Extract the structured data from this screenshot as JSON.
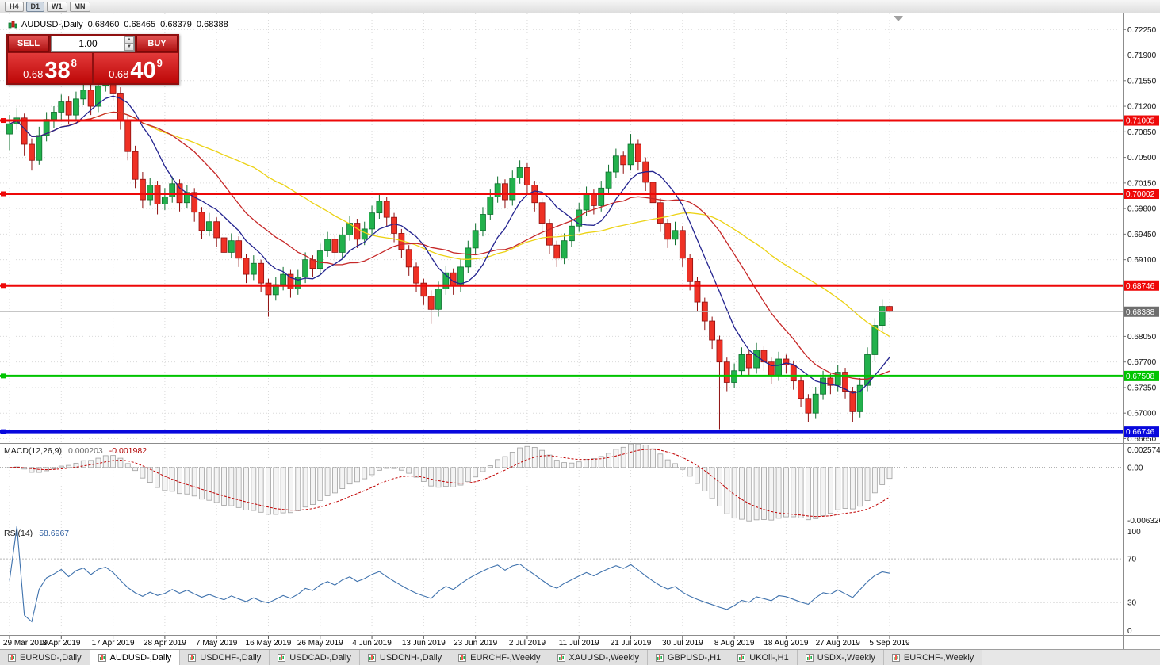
{
  "toolbar": {
    "periods": [
      {
        "label": "H4",
        "active": false
      },
      {
        "label": "D1",
        "active": true
      },
      {
        "label": "W1",
        "active": false
      },
      {
        "label": "MN",
        "active": false
      }
    ]
  },
  "chart_header": {
    "symbol_label": "AUDUSD-,Daily",
    "open": "0.68460",
    "high": "0.68465",
    "low": "0.68379",
    "close": "0.68388"
  },
  "trade_widget": {
    "sell_label": "SELL",
    "buy_label": "BUY",
    "volume": "1.00",
    "sell_price_prefix": "0.68",
    "sell_price_big": "38",
    "sell_price_sup": "8",
    "buy_price_prefix": "0.68",
    "buy_price_big": "40",
    "buy_price_sup": "9"
  },
  "icons": {
    "spin_up": "▲",
    "spin_down": "▼"
  },
  "colors": {
    "candle_up": "#22b14c",
    "candle_up_border": "#0e6f2e",
    "candle_down": "#ef3125",
    "candle_down_border": "#8e0f0f",
    "hline_red": "#ee0808",
    "hline_green": "#00c400",
    "hline_blue": "#0808dd",
    "current_price_box": "#6e6e6e",
    "macd_hist_fill": "#f4f4f4",
    "macd_hist_border": "#a0a0a0",
    "macd_signal": "#c00000",
    "rsi_line": "#3f72ad",
    "grid": "#dadada"
  },
  "chart_data": {
    "type": "candlestick",
    "symbol": "AUDUSD",
    "timeframe": "Daily",
    "label_every": 7,
    "x_labels": [
      "29 Mar 2019",
      "8 Apr 2019",
      "17 Apr 2019",
      "28 Apr 2019",
      "7 May 2019",
      "16 May 2019",
      "26 May 2019",
      "4 Jun 2019",
      "13 Jun 2019",
      "23 Jun 2019",
      "2 Jul 2019",
      "11 Jul 2019",
      "21 Jul 2019",
      "30 Jul 2019",
      "8 Aug 2019",
      "18 Aug 2019",
      "27 Aug 2019",
      "5 Sep 2019"
    ],
    "view_range": {
      "max": 0.7247,
      "min": 0.6659
    },
    "price_axis": {
      "ticks": [
        0.7225,
        0.719,
        0.7155,
        0.712,
        0.7085,
        0.705,
        0.7015,
        0.698,
        0.6945,
        0.691,
        0.6805,
        0.677,
        0.6735,
        0.67,
        0.6665
      ]
    },
    "candles": [
      [
        0.7082,
        0.7108,
        0.706,
        0.7096
      ],
      [
        0.7096,
        0.7118,
        0.7088,
        0.7104
      ],
      [
        0.7104,
        0.711,
        0.7052,
        0.7068
      ],
      [
        0.7068,
        0.7076,
        0.7032,
        0.7046
      ],
      [
        0.7046,
        0.7092,
        0.704,
        0.708
      ],
      [
        0.708,
        0.7112,
        0.7072,
        0.7102
      ],
      [
        0.7102,
        0.712,
        0.709,
        0.7112
      ],
      [
        0.7112,
        0.7136,
        0.71,
        0.7126
      ],
      [
        0.7126,
        0.7134,
        0.7096,
        0.7108
      ],
      [
        0.7108,
        0.714,
        0.71,
        0.713
      ],
      [
        0.713,
        0.7152,
        0.7122,
        0.7142
      ],
      [
        0.7142,
        0.715,
        0.7108,
        0.712
      ],
      [
        0.712,
        0.7156,
        0.7112,
        0.7148
      ],
      [
        0.7148,
        0.7172,
        0.714,
        0.716
      ],
      [
        0.716,
        0.7176,
        0.7128,
        0.7138
      ],
      [
        0.7138,
        0.7146,
        0.7088,
        0.71
      ],
      [
        0.71,
        0.7108,
        0.7046,
        0.7058
      ],
      [
        0.7058,
        0.7066,
        0.7008,
        0.702
      ],
      [
        0.702,
        0.703,
        0.698,
        0.6992
      ],
      [
        0.6992,
        0.7022,
        0.6984,
        0.7012
      ],
      [
        0.7012,
        0.7018,
        0.6972,
        0.6986
      ],
      [
        0.6986,
        0.7008,
        0.6978,
        0.6996
      ],
      [
        0.6996,
        0.7024,
        0.6988,
        0.7014
      ],
      [
        0.7014,
        0.702,
        0.6976,
        0.6988
      ],
      [
        0.6988,
        0.7012,
        0.698,
        0.7002
      ],
      [
        0.7002,
        0.7008,
        0.6962,
        0.6975
      ],
      [
        0.6975,
        0.6982,
        0.6938,
        0.695
      ],
      [
        0.695,
        0.6974,
        0.6942,
        0.6962
      ],
      [
        0.6962,
        0.6968,
        0.6928,
        0.694
      ],
      [
        0.694,
        0.6948,
        0.6908,
        0.692
      ],
      [
        0.692,
        0.6946,
        0.6912,
        0.6936
      ],
      [
        0.6936,
        0.6942,
        0.69,
        0.6912
      ],
      [
        0.6912,
        0.6918,
        0.6878,
        0.689
      ],
      [
        0.689,
        0.6916,
        0.6882,
        0.6905
      ],
      [
        0.6905,
        0.691,
        0.6866,
        0.6878
      ],
      [
        0.6878,
        0.6884,
        0.6832,
        0.6862
      ],
      [
        0.6862,
        0.6886,
        0.6854,
        0.6876
      ],
      [
        0.6876,
        0.69,
        0.6868,
        0.689
      ],
      [
        0.689,
        0.6896,
        0.6858,
        0.687
      ],
      [
        0.687,
        0.6896,
        0.6862,
        0.6886
      ],
      [
        0.6886,
        0.692,
        0.6878,
        0.691
      ],
      [
        0.691,
        0.6916,
        0.6886,
        0.6898
      ],
      [
        0.6898,
        0.6932,
        0.689,
        0.6922
      ],
      [
        0.6922,
        0.6948,
        0.6914,
        0.6938
      ],
      [
        0.6938,
        0.6944,
        0.6908,
        0.692
      ],
      [
        0.692,
        0.6954,
        0.6912,
        0.6944
      ],
      [
        0.6944,
        0.697,
        0.6936,
        0.696
      ],
      [
        0.696,
        0.6966,
        0.6926,
        0.6938
      ],
      [
        0.6938,
        0.6962,
        0.693,
        0.6952
      ],
      [
        0.6952,
        0.6984,
        0.6944,
        0.6974
      ],
      [
        0.6974,
        0.7,
        0.6966,
        0.699
      ],
      [
        0.699,
        0.6996,
        0.6956,
        0.6968
      ],
      [
        0.6968,
        0.6974,
        0.6934,
        0.6946
      ],
      [
        0.6946,
        0.6952,
        0.6912,
        0.6924
      ],
      [
        0.6924,
        0.693,
        0.6888,
        0.69
      ],
      [
        0.69,
        0.6906,
        0.6866,
        0.6878
      ],
      [
        0.6878,
        0.6884,
        0.6848,
        0.686
      ],
      [
        0.686,
        0.6868,
        0.6822,
        0.6842
      ],
      [
        0.6842,
        0.688,
        0.6832,
        0.687
      ],
      [
        0.687,
        0.6902,
        0.6862,
        0.6892
      ],
      [
        0.6892,
        0.6898,
        0.6862,
        0.6874
      ],
      [
        0.6874,
        0.691,
        0.6866,
        0.69
      ],
      [
        0.69,
        0.6936,
        0.6892,
        0.6926
      ],
      [
        0.6926,
        0.696,
        0.6918,
        0.695
      ],
      [
        0.695,
        0.6982,
        0.6942,
        0.6972
      ],
      [
        0.6972,
        0.7006,
        0.6964,
        0.6996
      ],
      [
        0.6996,
        0.7024,
        0.6988,
        0.7014
      ],
      [
        0.7014,
        0.702,
        0.698,
        0.6992
      ],
      [
        0.6992,
        0.7032,
        0.6984,
        0.7022
      ],
      [
        0.7022,
        0.7046,
        0.7014,
        0.7036
      ],
      [
        0.7036,
        0.7042,
        0.7,
        0.7012
      ],
      [
        0.7012,
        0.7018,
        0.6976,
        0.6988
      ],
      [
        0.6988,
        0.6994,
        0.6948,
        0.696
      ],
      [
        0.696,
        0.6966,
        0.6918,
        0.693
      ],
      [
        0.693,
        0.6936,
        0.69,
        0.6912
      ],
      [
        0.6912,
        0.6946,
        0.6904,
        0.6936
      ],
      [
        0.6936,
        0.6966,
        0.6928,
        0.6956
      ],
      [
        0.6956,
        0.6988,
        0.6948,
        0.6978
      ],
      [
        0.6978,
        0.701,
        0.697,
        0.7
      ],
      [
        0.7,
        0.7006,
        0.6972,
        0.6984
      ],
      [
        0.6984,
        0.7018,
        0.6976,
        0.7008
      ],
      [
        0.7008,
        0.704,
        0.7,
        0.703
      ],
      [
        0.703,
        0.7062,
        0.7022,
        0.7052
      ],
      [
        0.7052,
        0.7058,
        0.7028,
        0.704
      ],
      [
        0.704,
        0.7082,
        0.7032,
        0.7068
      ],
      [
        0.7068,
        0.7074,
        0.7032,
        0.7044
      ],
      [
        0.7044,
        0.705,
        0.7004,
        0.7016
      ],
      [
        0.7016,
        0.7022,
        0.6976,
        0.6988
      ],
      [
        0.6988,
        0.6994,
        0.6948,
        0.696
      ],
      [
        0.696,
        0.6966,
        0.6926,
        0.6938
      ],
      [
        0.6938,
        0.6962,
        0.693,
        0.695
      ],
      [
        0.695,
        0.6956,
        0.69,
        0.6912
      ],
      [
        0.6912,
        0.6918,
        0.6868,
        0.688
      ],
      [
        0.688,
        0.6886,
        0.684,
        0.6852
      ],
      [
        0.6852,
        0.6858,
        0.6814,
        0.6826
      ],
      [
        0.6826,
        0.6832,
        0.6788,
        0.68
      ],
      [
        0.68,
        0.6806,
        0.6678,
        0.677
      ],
      [
        0.677,
        0.6776,
        0.673,
        0.6742
      ],
      [
        0.6742,
        0.6768,
        0.6734,
        0.6758
      ],
      [
        0.6758,
        0.679,
        0.675,
        0.678
      ],
      [
        0.678,
        0.6786,
        0.6752,
        0.6762
      ],
      [
        0.6762,
        0.6796,
        0.6754,
        0.6786
      ],
      [
        0.6786,
        0.6792,
        0.6758,
        0.677
      ],
      [
        0.677,
        0.6776,
        0.674,
        0.6752
      ],
      [
        0.6752,
        0.6784,
        0.6744,
        0.6774
      ],
      [
        0.6774,
        0.678,
        0.6754,
        0.6766
      ],
      [
        0.6766,
        0.6772,
        0.6732,
        0.6744
      ],
      [
        0.6744,
        0.675,
        0.6708,
        0.672
      ],
      [
        0.672,
        0.6726,
        0.6688,
        0.67
      ],
      [
        0.67,
        0.6736,
        0.6692,
        0.6726
      ],
      [
        0.6726,
        0.6758,
        0.6718,
        0.6748
      ],
      [
        0.6748,
        0.6754,
        0.6726,
        0.6738
      ],
      [
        0.6738,
        0.6766,
        0.673,
        0.6756
      ],
      [
        0.6756,
        0.6762,
        0.672,
        0.673
      ],
      [
        0.673,
        0.6736,
        0.6688,
        0.6702
      ],
      [
        0.6702,
        0.6748,
        0.6694,
        0.6738
      ],
      [
        0.6738,
        0.679,
        0.673,
        0.678
      ],
      [
        0.678,
        0.683,
        0.6772,
        0.682
      ],
      [
        0.682,
        0.6856,
        0.6812,
        0.6846
      ],
      [
        0.6846,
        0.68465,
        0.68379,
        0.68388
      ]
    ],
    "moving_averages": [
      {
        "period": 34,
        "color": "#ecd213",
        "name": "ma-slow-yellow"
      },
      {
        "period": 17,
        "color": "#c62828",
        "name": "ma-mid-red"
      },
      {
        "period": 8,
        "color": "#23238f",
        "name": "ma-fast-blue"
      }
    ],
    "hlines": [
      {
        "price": 0.71005,
        "label": "0.71005",
        "color": "#ee0808",
        "width": 3
      },
      {
        "price": 0.70002,
        "label": "0.70002",
        "color": "#ee0808",
        "width": 3
      },
      {
        "price": 0.68746,
        "label": "0.68746",
        "color": "#ee0808",
        "width": 3
      },
      {
        "price": 0.67508,
        "label": "0.67508",
        "color": "#00c400",
        "width": 3
      },
      {
        "price": 0.66746,
        "label": "0.66746",
        "color": "#0808dd",
        "width": 4
      }
    ],
    "current_price": {
      "value": 0.68388,
      "label": "0.68388"
    },
    "indicators": {
      "macd": {
        "label": "MACD(12,26,9)",
        "value": "0.000203",
        "signal_value": "-0.001982",
        "fast": 12,
        "slow": 26,
        "signal": 9,
        "axis": {
          "max": 0.002574,
          "min": -0.006326,
          "ticks": [
            "0.002574",
            "0.00",
            "-0.006326"
          ]
        }
      },
      "rsi": {
        "label": "RSI(14)",
        "value": "58.6967",
        "period": 14,
        "levels": [
          70,
          30
        ],
        "axis_ticks": [
          "100",
          "70",
          "30",
          "0"
        ],
        "range": [
          0,
          100
        ]
      }
    }
  },
  "bottom_tabs": [
    {
      "label": "EURUSD-,Daily",
      "active": false
    },
    {
      "label": "AUDUSD-,Daily",
      "active": true
    },
    {
      "label": "USDCHF-,Daily",
      "active": false
    },
    {
      "label": "USDCAD-,Daily",
      "active": false
    },
    {
      "label": "USDCNH-,Daily",
      "active": false
    },
    {
      "label": "EURCHF-,Weekly",
      "active": false
    },
    {
      "label": "XAUUSD-,Weekly",
      "active": false
    },
    {
      "label": "GBPUSD-,H1",
      "active": false
    },
    {
      "label": "UKOil-,H1",
      "active": false
    },
    {
      "label": "USDX-,Weekly",
      "active": false
    },
    {
      "label": "EURCHF-,Weekly",
      "active": false
    }
  ]
}
